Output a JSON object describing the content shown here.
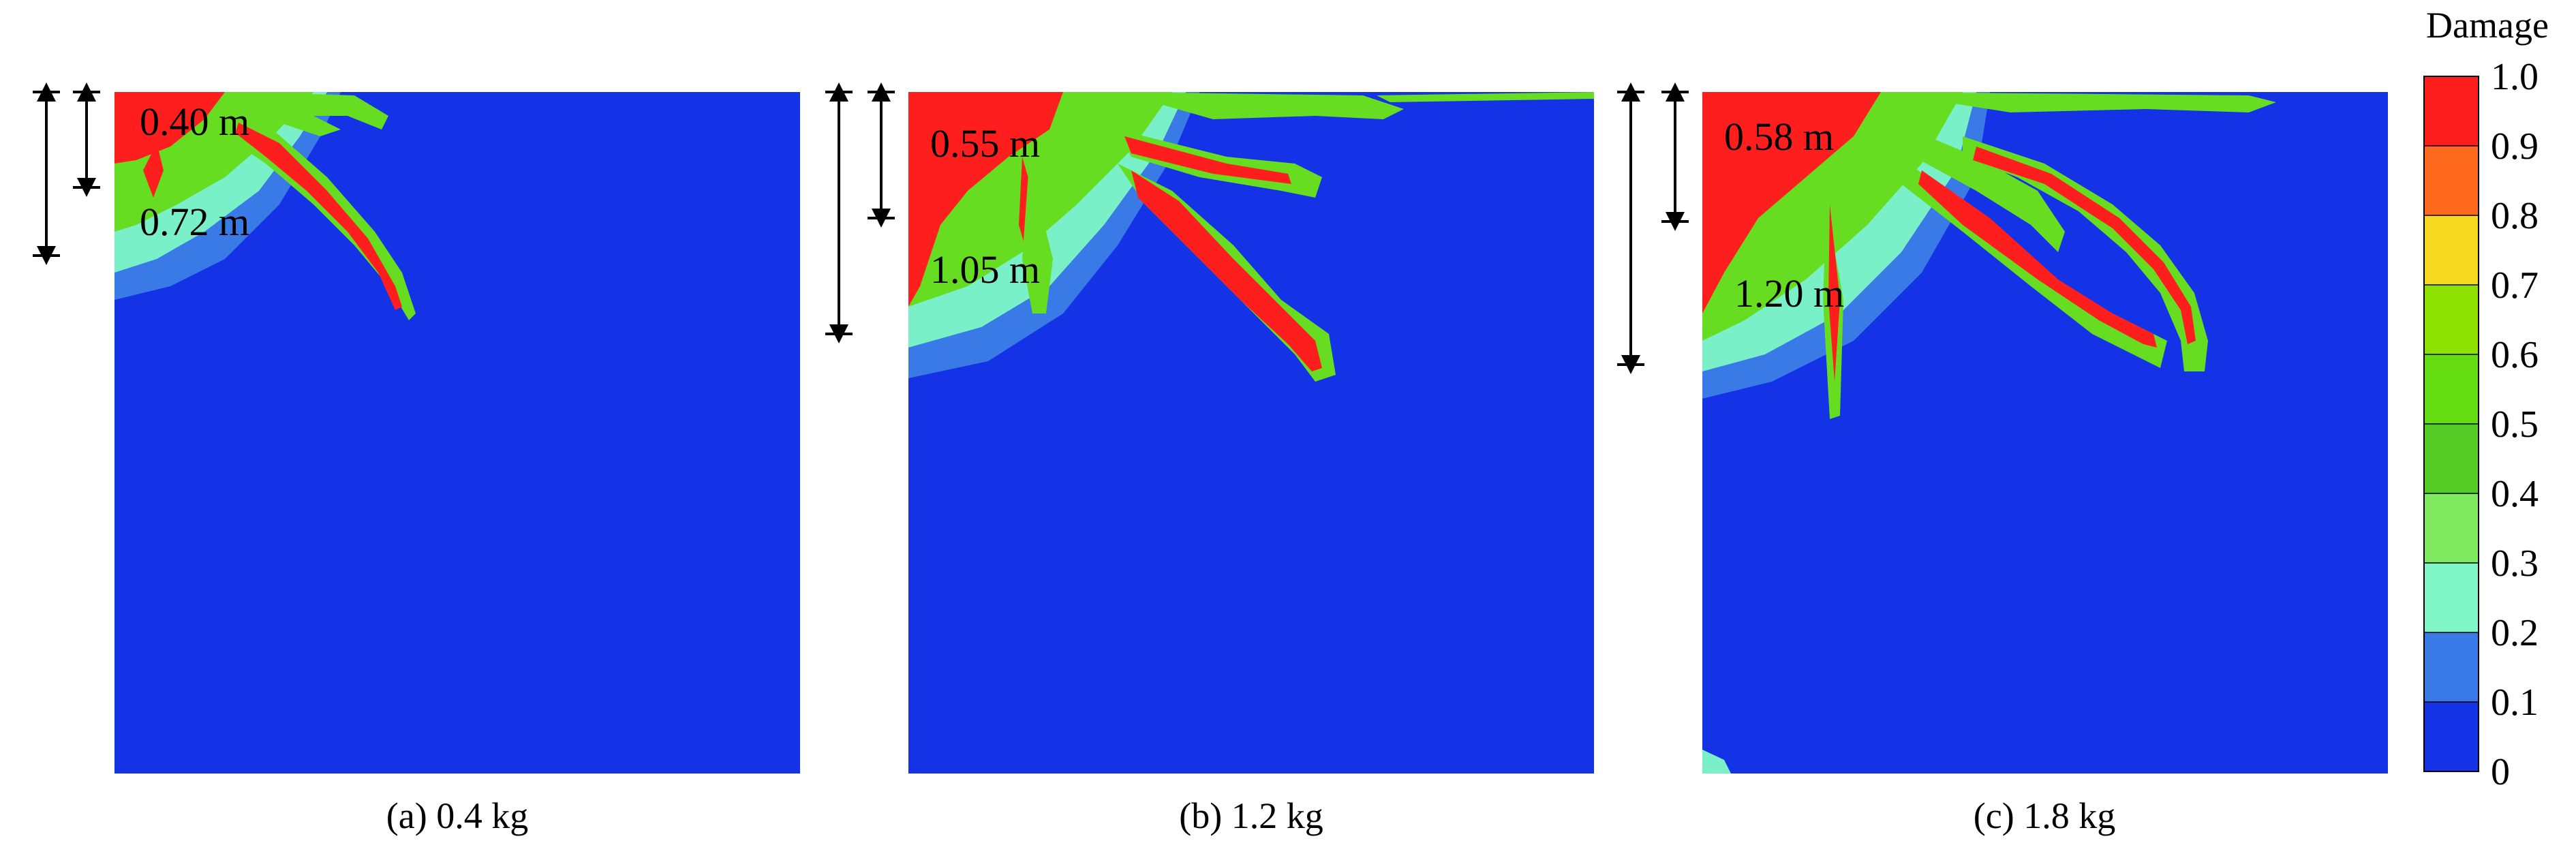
{
  "colors": {
    "background": "#1432e6",
    "damage_levels": [
      "#1432e6",
      "#3a7ae6",
      "#7af0c8",
      "#8ef08a",
      "#66e63a",
      "#55d020",
      "#7fe000",
      "#f5d820",
      "#ff8a1e",
      "#ff2a2a",
      "#ff0000"
    ]
  },
  "panels": [
    {
      "caption": "(a) 0.4 kg",
      "crater_depth": "0.40 m",
      "damage_depth": "0.72 m"
    },
    {
      "caption": "(b) 1.2 kg",
      "crater_depth": "0.55 m",
      "damage_depth": "1.05 m"
    },
    {
      "caption": "(c) 1.8 kg",
      "crater_depth": "0.58 m",
      "damage_depth": "1.20 m"
    }
  ],
  "colorbar": {
    "title": "Damage",
    "ticks": [
      "1.0",
      "0.9",
      "0.8",
      "0.7",
      "0.6",
      "0.5",
      "0.4",
      "0.3",
      "0.2",
      "0.1",
      "0"
    ],
    "colors_top_to_bottom": [
      "#ff1e1e",
      "#ff6a1e",
      "#f5d820",
      "#8ee000",
      "#66dd10",
      "#55cc25",
      "#80ea60",
      "#7ff5c8",
      "#3a7ae6",
      "#1432e6"
    ]
  }
}
